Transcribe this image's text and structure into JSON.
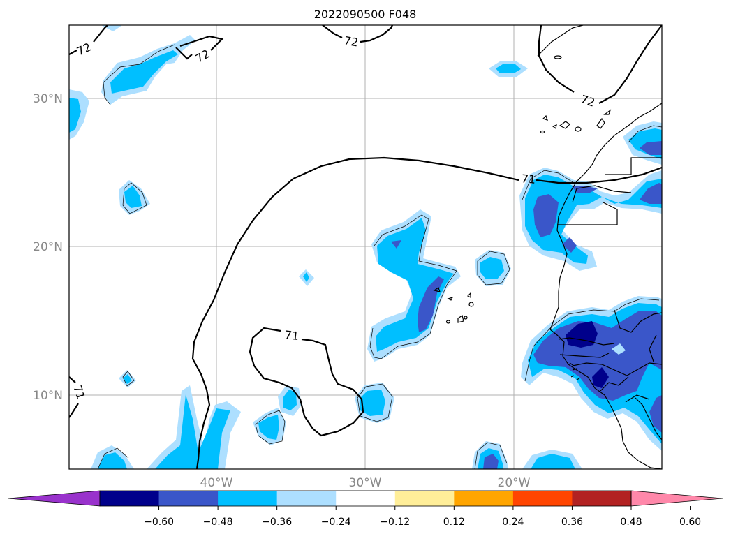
{
  "title": "2022090500 F048",
  "lat_labels": [
    "30°N",
    "20°N",
    "10°N"
  ],
  "lon_labels": [
    "40°W",
    "30°W",
    "20°W"
  ],
  "contour_labels": [
    "72",
    "72",
    "72",
    "72",
    "71",
    "71",
    "71"
  ],
  "colorbar": {
    "ticks": [
      "−0.60",
      "−0.48",
      "−0.36",
      "−0.24",
      "−0.12",
      "0.12",
      "0.24",
      "0.36",
      "0.48",
      "0.60"
    ],
    "colors": [
      "#9932cc",
      "#00008b",
      "#3a56c9",
      "#00bfff",
      "#addfff",
      "#ffffff",
      "#ffee99",
      "#ffa500",
      "#ff4500",
      "#b22222",
      "#ff88aa"
    ]
  },
  "fill_colors": {
    "light": "#addfff",
    "mid": "#00bfff",
    "dark": "#3a56c9",
    "darkest": "#00008b"
  }
}
